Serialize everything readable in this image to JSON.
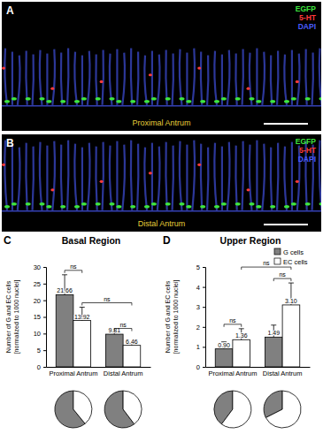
{
  "images": [
    {
      "label": "A",
      "channels": [
        {
          "name": "EGFP",
          "color": "#3ee63e"
        },
        {
          "name": "5-HT",
          "color": "#ff3a3a"
        },
        {
          "name": "DAPI",
          "color": "#4a5cff"
        }
      ],
      "region": "Proximal Antrum"
    },
    {
      "label": "B",
      "channels": [
        {
          "name": "EGFP",
          "color": "#3ee63e"
        },
        {
          "name": "5-HT",
          "color": "#ff3a3a"
        },
        {
          "name": "DAPI",
          "color": "#4a5cff"
        }
      ],
      "region": "Distal Antrum"
    }
  ],
  "chart_data": [
    {
      "type": "bar",
      "panel_label": "C",
      "title": "Basal Region",
      "y_label": [
        "Number of G and EC cells",
        "[normalized to 1000 nuclei]"
      ],
      "categories": [
        "Proximal Antrum",
        "Distal Antrum"
      ],
      "series": [
        {
          "name": "G cells",
          "color": "#808080",
          "values": [
            21.66,
            9.81
          ],
          "errors": [
            6.0,
            0.4
          ]
        },
        {
          "name": "EC cells",
          "color": "#ffffff",
          "values": [
            13.92,
            6.46
          ],
          "errors": [
            4.0,
            0.6
          ]
        }
      ],
      "ylim": [
        0,
        30
      ],
      "yticks": [
        0,
        5,
        10,
        15,
        20,
        25,
        30
      ],
      "data_labels": true,
      "grid": false,
      "annotations": [
        "ns",
        "ns",
        "ns"
      ]
    },
    {
      "type": "bar",
      "panel_label": "D",
      "title": "Upper Region",
      "y_label": [
        "Number of G and EC cells",
        "[normalized to 1000 nuclei]"
      ],
      "categories": [
        "Proximal Antrum",
        "Distal Antrum"
      ],
      "series": [
        {
          "name": "G cells",
          "color": "#808080",
          "values": [
            0.9,
            1.49
          ],
          "value_labels": [
            "0.90",
            "1.49"
          ],
          "errors": [
            0.35,
            0.6
          ]
        },
        {
          "name": "EC cells",
          "color": "#ffffff",
          "values": [
            1.36,
            3.1
          ],
          "value_labels": [
            "1.36",
            "3.10"
          ],
          "errors": [
            0.55,
            1.1
          ]
        }
      ],
      "ylim": [
        0,
        5
      ],
      "yticks": [
        0,
        1,
        2,
        3,
        4,
        5
      ],
      "data_labels": true,
      "grid": false,
      "legend": "top-right",
      "annotations": [
        "ns",
        "ns",
        "ns"
      ]
    },
    {
      "type": "pie",
      "values": [
        21.66,
        13.92
      ],
      "colors": [
        "#808080",
        "#ffffff"
      ]
    },
    {
      "type": "pie",
      "values": [
        9.81,
        6.46
      ],
      "colors": [
        "#808080",
        "#ffffff"
      ]
    },
    {
      "type": "pie",
      "values": [
        0.9,
        1.36
      ],
      "colors": [
        "#808080",
        "#ffffff"
      ]
    },
    {
      "type": "pie",
      "values": [
        1.49,
        3.1
      ],
      "colors": [
        "#808080",
        "#ffffff"
      ]
    }
  ]
}
